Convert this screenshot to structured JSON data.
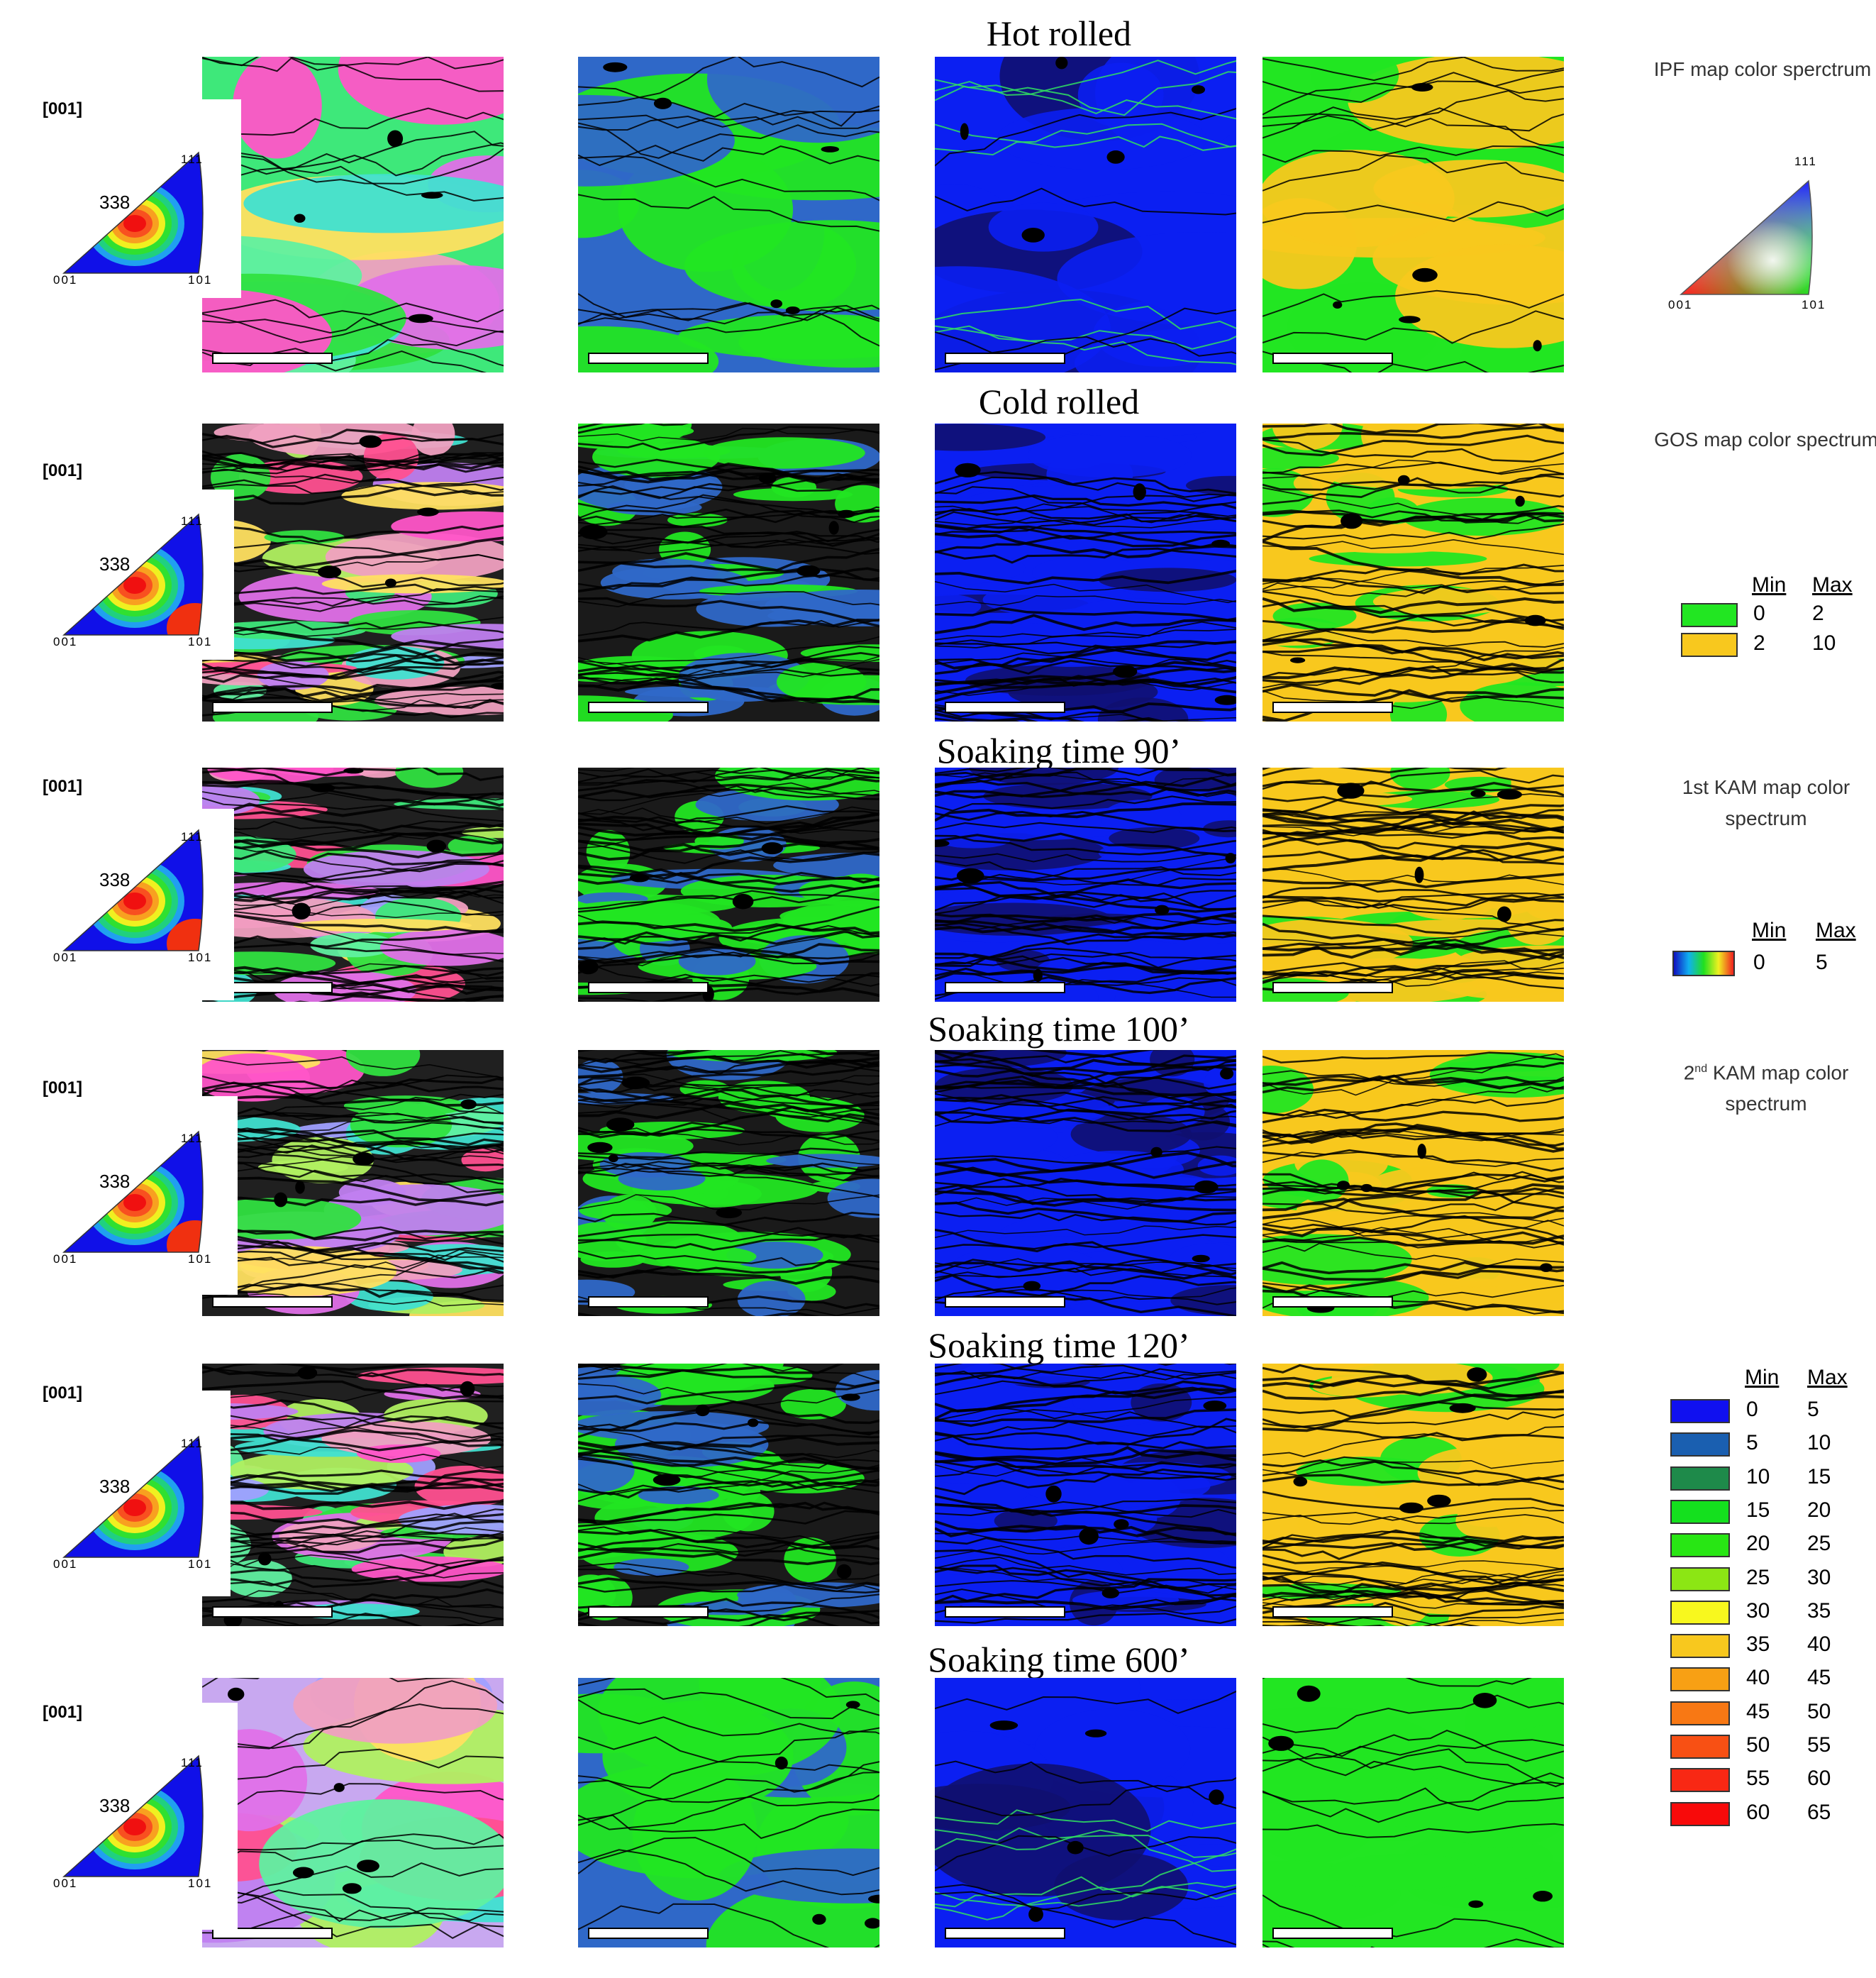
{
  "rows": [
    {
      "title": "Hot rolled",
      "pole_direction": "[001]",
      "pole_338": "338",
      "pole_111": "111",
      "pole_001": "001",
      "pole_101": "101"
    },
    {
      "title": "Cold rolled",
      "pole_direction": "[001]",
      "pole_338": "338",
      "pole_111": "111",
      "pole_001": "001",
      "pole_101": "101"
    },
    {
      "title": "Soaking time 90’",
      "pole_direction": "[001]",
      "pole_338": "338",
      "pole_111": "111",
      "pole_001": "001",
      "pole_101": "101"
    },
    {
      "title": "Soaking time 100’",
      "pole_direction": "[001]",
      "pole_338": "338",
      "pole_111": "111",
      "pole_001": "001",
      "pole_101": "101"
    },
    {
      "title": "Soaking time 120’",
      "pole_direction": "[001]",
      "pole_338": "338",
      "pole_111": "111",
      "pole_001": "001",
      "pole_101": "101"
    },
    {
      "title": "Soaking time 600’",
      "pole_direction": "[001]",
      "pole_338": "338",
      "pole_111": "111",
      "pole_001": "001",
      "pole_101": "101"
    }
  ],
  "legend": {
    "ipf_title": "IPF map color sperctrum",
    "ipf_111": "111",
    "ipf_001": "001",
    "ipf_101": "101",
    "gos_title": "GOS map color spectrum",
    "gos_min_header": "Min",
    "gos_max_header": "Max",
    "gos_rows": [
      {
        "min": "0",
        "max": "2",
        "color": "#22e622"
      },
      {
        "min": "2",
        "max": "10",
        "color": "#f8c81e"
      }
    ],
    "kam1_title": "1st KAM map color spectrum",
    "kam1_min_header": "Min",
    "kam1_max_header": "Max",
    "kam1_min": "0",
    "kam1_max": "5",
    "kam2_title_base": "2",
    "kam2_title_sup": "nd",
    "kam2_title_rest": " KAM map color spectrum",
    "kam2_min_header": "Min",
    "kam2_max_header": "Max",
    "kam2_rows": [
      {
        "min": "0",
        "max": "5",
        "color": "#1010f0"
      },
      {
        "min": "5",
        "max": "10",
        "color": "#1a5fb0"
      },
      {
        "min": "10",
        "max": "15",
        "color": "#1e8a4a"
      },
      {
        "min": "15",
        "max": "20",
        "color": "#14e01e"
      },
      {
        "min": "20",
        "max": "25",
        "color": "#28e614"
      },
      {
        "min": "25",
        "max": "30",
        "color": "#8ce614"
      },
      {
        "min": "30",
        "max": "35",
        "color": "#f8f81e"
      },
      {
        "min": "35",
        "max": "40",
        "color": "#f8c81e"
      },
      {
        "min": "40",
        "max": "45",
        "color": "#f8a014"
      },
      {
        "min": "45",
        "max": "50",
        "color": "#f87814"
      },
      {
        "min": "50",
        "max": "55",
        "color": "#f85014"
      },
      {
        "min": "55",
        "max": "60",
        "color": "#f82814"
      },
      {
        "min": "60",
        "max": "65",
        "color": "#f80a0a"
      }
    ]
  },
  "colors": {
    "ipf_green": "#3ee87a",
    "gos_green": "#22e622",
    "gos_yellow": "#f8c81e",
    "kam_blue": "#0b1ff2",
    "kam_teal": "#1f6fc0",
    "boundary_black": "#000000"
  }
}
